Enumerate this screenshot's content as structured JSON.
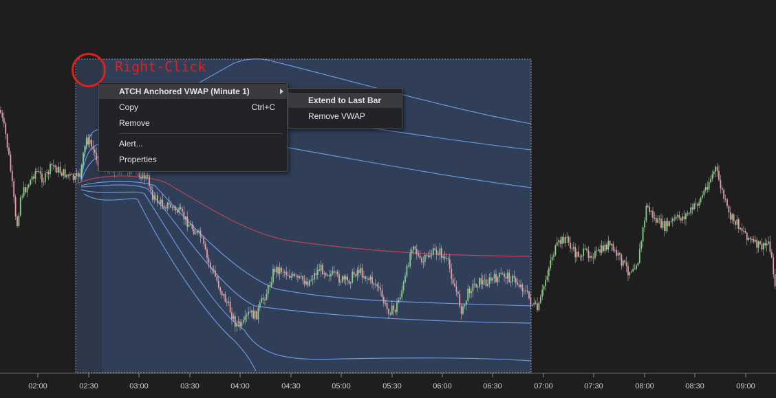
{
  "annotation": {
    "label": "Right-Click"
  },
  "context_menu": {
    "header": {
      "label": "ATCH Anchored VWAP (Minute 1)"
    },
    "items": [
      {
        "label": "Copy",
        "shortcut": "Ctrl+C"
      },
      {
        "label": "Remove",
        "shortcut": ""
      },
      {
        "label": "Alert...",
        "shortcut": ""
      },
      {
        "label": "Properties",
        "shortcut": ""
      }
    ]
  },
  "submenu": {
    "items": [
      {
        "label": "Extend to Last Bar"
      },
      {
        "label": "Remove VWAP"
      }
    ]
  },
  "colors": {
    "background": "#1e1e1e",
    "selection_fill": "#3f5b86",
    "band_line": "#6f9be8",
    "vwap_line": "#c0435e",
    "candle_up": "#7fd67f",
    "candle_down": "#f09aa8",
    "annotation": "#e0201a"
  },
  "chart_data": {
    "type": "candlestick",
    "x_ticks": [
      "02:00",
      "02:30",
      "03:00",
      "03:30",
      "04:00",
      "04:30",
      "05:00",
      "05:30",
      "06:00",
      "06:30",
      "07:00",
      "07:30",
      "08:00",
      "08:30",
      "09:00"
    ],
    "anchored_vwap": {
      "bands": 3,
      "selected": true
    }
  }
}
